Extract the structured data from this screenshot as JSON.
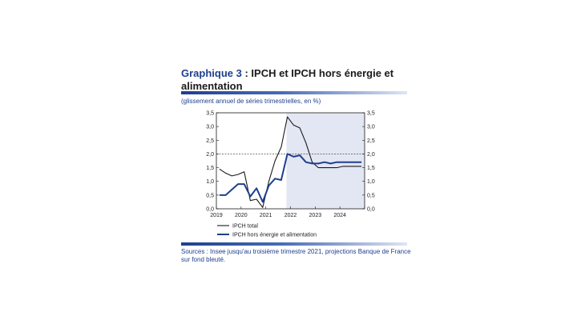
{
  "header": {
    "number": "Graphique 3",
    "text": " : IPCH et IPCH hors énergie et alimentation",
    "subtitle": "(glissement annuel de séries trimestrielles, en %)"
  },
  "footer": {
    "source": "Sources : Insee jusqu'au troisième trimestre 2021, projections Banque de France sur fond bleuté."
  },
  "chart_data": {
    "type": "line",
    "x": [
      "2019T1",
      "2019T2",
      "2019T3",
      "2019T4",
      "2020T1",
      "2020T2",
      "2020T3",
      "2020T4",
      "2021T1",
      "2021T2",
      "2021T3",
      "2021T4",
      "2022T1",
      "2022T2",
      "2022T3",
      "2022T4",
      "2023T1",
      "2023T2",
      "2023T3",
      "2023T4",
      "2024T1",
      "2024T2",
      "2024T3",
      "2024T4"
    ],
    "xtick_labels": [
      "2019",
      "2020",
      "2021",
      "2022",
      "2023",
      "2024"
    ],
    "yticks": [
      "0,0",
      "0,5",
      "1,0",
      "1,5",
      "2,0",
      "2,5",
      "3,0",
      "3,5"
    ],
    "ylim": [
      0,
      3.5
    ],
    "reference_line": 2.0,
    "projection_start": "2021T4",
    "series": [
      {
        "name": "IPCH total",
        "color": "#1a1a1a",
        "values": [
          1.45,
          1.3,
          1.2,
          1.25,
          1.35,
          0.3,
          0.35,
          0.05,
          1.0,
          1.75,
          2.25,
          3.35,
          3.05,
          2.95,
          2.4,
          1.7,
          1.5,
          1.5,
          1.5,
          1.5,
          1.55,
          1.55,
          1.55,
          1.55
        ]
      },
      {
        "name": "IPCH hors énergie et alimentation",
        "color": "#1f3f8f",
        "values": [
          0.5,
          0.5,
          0.7,
          0.9,
          0.9,
          0.45,
          0.75,
          0.25,
          0.85,
          1.1,
          1.05,
          2.0,
          1.9,
          1.95,
          1.7,
          1.65,
          1.65,
          1.7,
          1.65,
          1.7,
          1.7,
          1.7,
          1.7,
          1.7
        ]
      }
    ]
  }
}
